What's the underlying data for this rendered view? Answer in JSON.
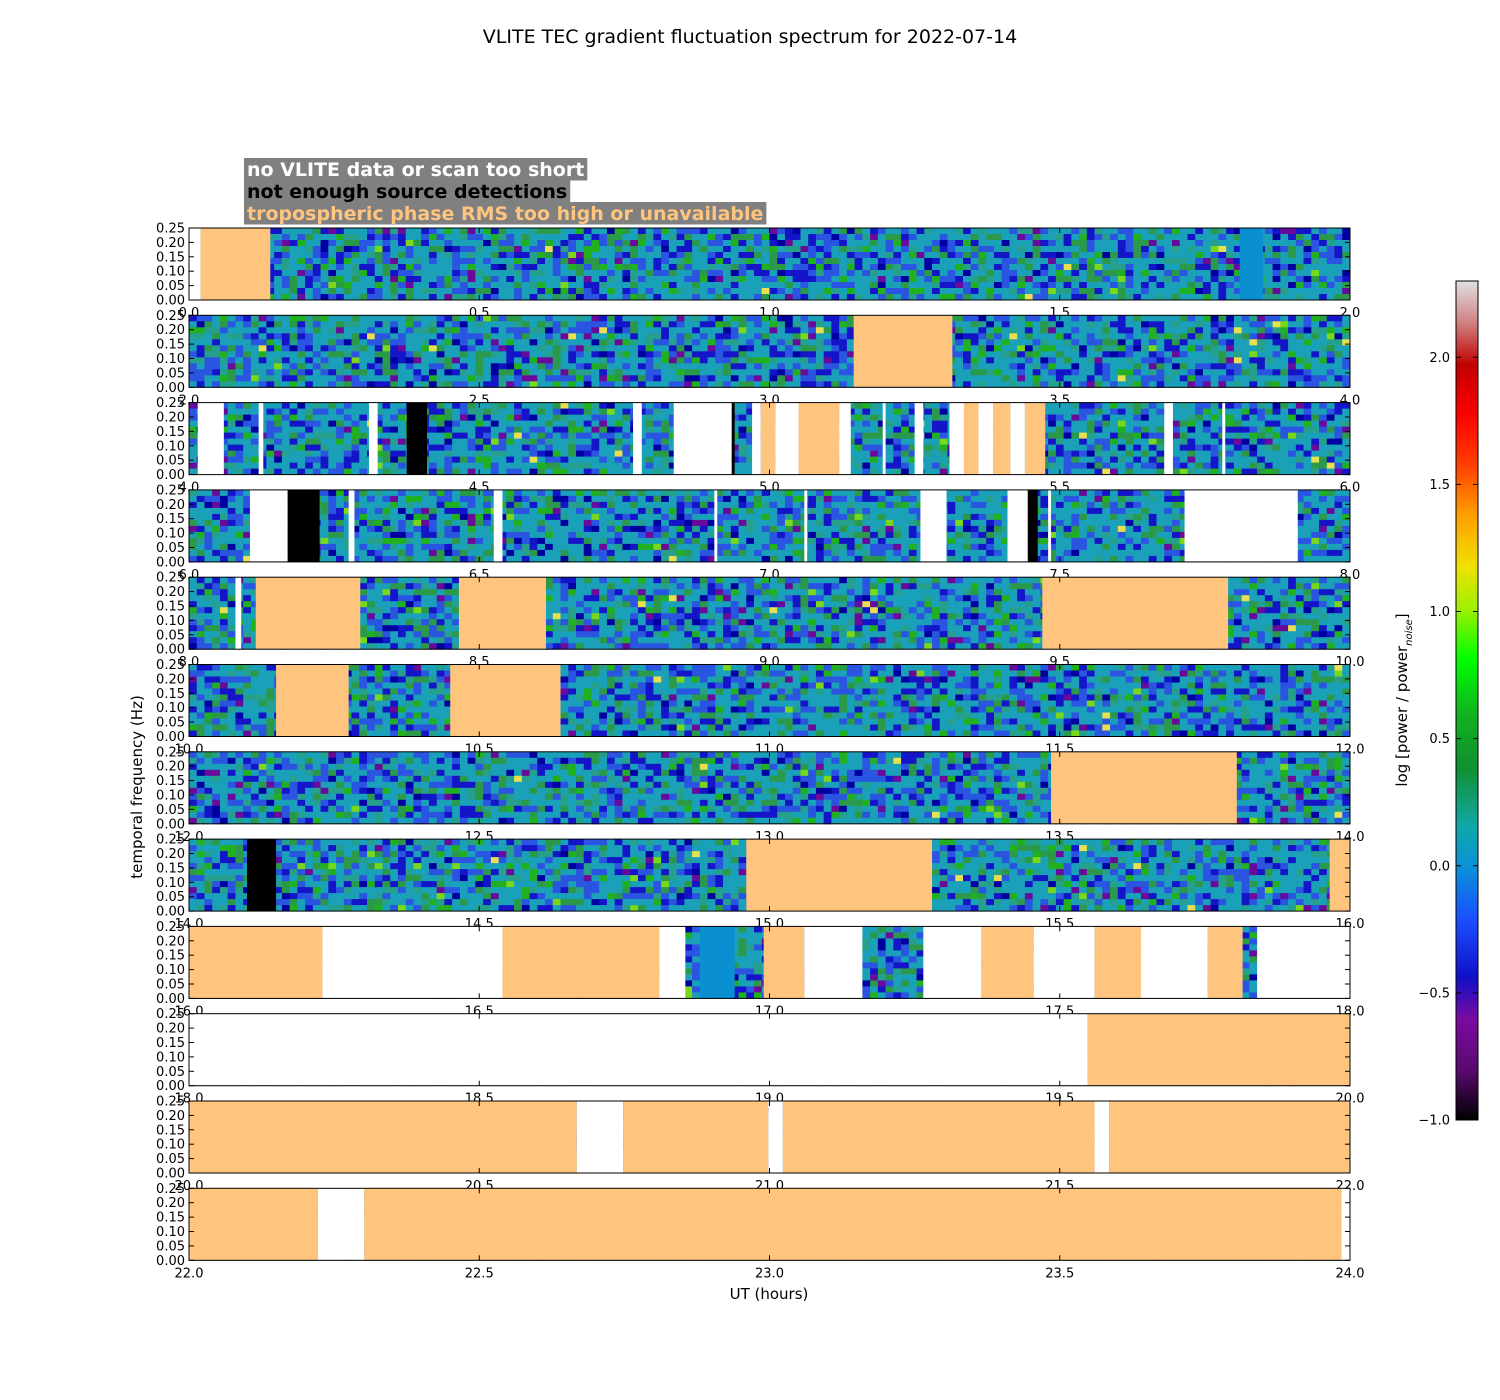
{
  "chart_data": {
    "type": "heatmap",
    "title": "VLITE TEC gradient fluctuation spectrum for 2022-07-14",
    "xlabel": "UT (hours)",
    "ylabel": "temporal frequency (Hz)",
    "ylim": [
      0.0,
      0.25
    ],
    "y_ticks": [
      "0.00",
      "0.05",
      "0.10",
      "0.15",
      "0.20",
      "0.25"
    ],
    "colorbar": {
      "label": "log [power / power_noise]",
      "label_main": "log [power / power",
      "label_sub": "noise",
      "label_close": "]",
      "range": [
        -1.0,
        2.3
      ],
      "ticks": [
        "−1.0",
        "−0.5",
        "0.0",
        "0.5",
        "1.0",
        "1.5",
        "2.0"
      ],
      "tick_values": [
        -1.0,
        -0.5,
        0.0,
        0.5,
        1.0,
        1.5,
        2.0
      ]
    },
    "legend": [
      {
        "key": "nodata",
        "label": "no VLITE data or scan too short",
        "color": "#ffffff"
      },
      {
        "key": "detect",
        "label": "not enough source detections",
        "color": "#000000"
      },
      {
        "key": "tropo",
        "label": "tropospheric phase RMS too high or unavailable",
        "color": "#ffc57f"
      }
    ],
    "legend_box_color": "#808080",
    "panels": [
      {
        "x_ticks": [
          "0.0",
          "0.5",
          "1.0",
          "1.5",
          "2.0"
        ],
        "xlim": [
          0,
          2
        ],
        "segments": [
          [
            "nodata",
            0.0,
            0.02
          ],
          [
            "tropo",
            0.02,
            0.14
          ],
          [
            "blue",
            1.81,
            1.85
          ]
        ]
      },
      {
        "x_ticks": [
          "2.0",
          "2.5",
          "3.0",
          "3.5",
          "4.0"
        ],
        "xlim": [
          2,
          4
        ],
        "segments": [
          [
            "tropo",
            3.145,
            3.315
          ]
        ]
      },
      {
        "x_ticks": [
          "4.0",
          "4.5",
          "5.0",
          "5.5",
          "6.0"
        ],
        "xlim": [
          4,
          6
        ],
        "segments": [
          [
            "nodata",
            4.015,
            4.06
          ],
          [
            "nodata",
            4.12,
            4.128
          ],
          [
            "nodata",
            4.31,
            4.325
          ],
          [
            "detect",
            4.375,
            4.41
          ],
          [
            "nodata",
            4.765,
            4.78
          ],
          [
            "nodata",
            4.835,
            4.935
          ],
          [
            "detect",
            4.935,
            4.94
          ],
          [
            "nodata",
            4.97,
            4.985
          ],
          [
            "tropo",
            4.985,
            5.01
          ],
          [
            "nodata",
            5.01,
            5.05
          ],
          [
            "tropo",
            5.05,
            5.12
          ],
          [
            "nodata",
            5.12,
            5.14
          ],
          [
            "nodata",
            5.195,
            5.2
          ],
          [
            "nodata",
            5.25,
            5.265
          ],
          [
            "nodata",
            5.31,
            5.335
          ],
          [
            "tropo",
            5.335,
            5.36
          ],
          [
            "nodata",
            5.36,
            5.385
          ],
          [
            "tropo",
            5.385,
            5.415
          ],
          [
            "nodata",
            5.415,
            5.44
          ],
          [
            "tropo",
            5.44,
            5.475
          ],
          [
            "nodata",
            5.68,
            5.695
          ],
          [
            "nodata",
            5.78,
            5.785
          ]
        ]
      },
      {
        "x_ticks": [
          "6.0",
          "6.5",
          "7.0",
          "7.5",
          "8.0"
        ],
        "xlim": [
          6,
          8
        ],
        "segments": [
          [
            "nodata",
            6.105,
            6.17
          ],
          [
            "detect",
            6.17,
            6.225
          ],
          [
            "nodata",
            6.275,
            6.285
          ],
          [
            "nodata",
            6.525,
            6.54
          ],
          [
            "nodata",
            6.905,
            6.91
          ],
          [
            "nodata",
            7.06,
            7.065
          ],
          [
            "nodata",
            7.26,
            7.305
          ],
          [
            "nodata",
            7.41,
            7.445
          ],
          [
            "detect",
            7.445,
            7.462
          ],
          [
            "nodata",
            7.48,
            7.485
          ],
          [
            "nodata",
            7.715,
            7.91
          ]
        ]
      },
      {
        "x_ticks": [
          "8.0",
          "8.5",
          "9.0",
          "9.5",
          "10.0"
        ],
        "xlim": [
          8,
          10
        ],
        "segments": [
          [
            "nodata",
            8.08,
            8.09
          ],
          [
            "tropo",
            8.115,
            8.295
          ],
          [
            "tropo",
            8.465,
            8.615
          ],
          [
            "tropo",
            9.47,
            9.79
          ]
        ]
      },
      {
        "x_ticks": [
          "10.0",
          "10.5",
          "11.0",
          "11.5",
          "12.0"
        ],
        "xlim": [
          10,
          12
        ],
        "segments": [
          [
            "tropo",
            10.15,
            10.275
          ],
          [
            "tropo",
            10.45,
            10.64
          ]
        ]
      },
      {
        "x_ticks": [
          "12.0",
          "12.5",
          "13.0",
          "13.5",
          "14.0"
        ],
        "xlim": [
          12,
          14
        ],
        "segments": [
          [
            "tropo",
            13.485,
            13.805
          ]
        ]
      },
      {
        "x_ticks": [
          "14.0",
          "14.5",
          "15.0",
          "15.5",
          "16.0"
        ],
        "xlim": [
          14,
          16
        ],
        "segments": [
          [
            "detect",
            14.1,
            14.15
          ],
          [
            "tropo",
            14.96,
            15.28
          ],
          [
            "tropo",
            15.965,
            16.0
          ]
        ]
      },
      {
        "x_ticks": [
          "16.0",
          "16.5",
          "17.0",
          "17.5",
          "18.0"
        ],
        "xlim": [
          16,
          18
        ],
        "segments": [
          [
            "tropo",
            16.0,
            16.23
          ],
          [
            "nodata",
            16.23,
            16.54
          ],
          [
            "tropo",
            16.54,
            16.81
          ],
          [
            "nodata",
            16.81,
            16.855
          ],
          [
            "blue",
            16.88,
            16.94
          ],
          [
            "tropo",
            16.99,
            17.06
          ],
          [
            "nodata",
            17.06,
            17.16
          ],
          [
            "nodata",
            17.265,
            17.365
          ],
          [
            "tropo",
            17.365,
            17.455
          ],
          [
            "nodata",
            17.455,
            17.56
          ],
          [
            "tropo",
            17.56,
            17.64
          ],
          [
            "nodata",
            17.64,
            17.755
          ],
          [
            "tropo",
            17.755,
            17.815
          ],
          [
            "nodata",
            17.84,
            18.0
          ]
        ]
      },
      {
        "x_ticks": [
          "18.0",
          "18.5",
          "19.0",
          "19.5",
          "20.0"
        ],
        "xlim": [
          18,
          20
        ],
        "segments": [
          [
            "nodata",
            18.0,
            19.548
          ],
          [
            "tropo",
            19.548,
            20.0
          ]
        ]
      },
      {
        "x_ticks": [
          "20.0",
          "20.5",
          "21.0",
          "21.5",
          "22.0"
        ],
        "xlim": [
          20,
          22
        ],
        "segments": [
          [
            "tropo",
            20.0,
            20.668
          ],
          [
            "nodata",
            20.668,
            20.748
          ],
          [
            "tropo",
            20.748,
            20.998
          ],
          [
            "nodata",
            20.998,
            21.023
          ],
          [
            "tropo",
            21.023,
            21.56
          ],
          [
            "nodata",
            21.56,
            21.585
          ],
          [
            "tropo",
            21.585,
            22.0
          ]
        ]
      },
      {
        "x_ticks": [
          "22.0",
          "22.5",
          "23.0",
          "23.5",
          "24.0"
        ],
        "xlim": [
          22,
          24
        ],
        "segments": [
          [
            "tropo",
            22.0,
            22.222
          ],
          [
            "nodata",
            22.222,
            22.302
          ],
          [
            "tropo",
            22.302,
            23.985
          ],
          [
            "nodata",
            23.985,
            24.0
          ]
        ]
      }
    ]
  }
}
